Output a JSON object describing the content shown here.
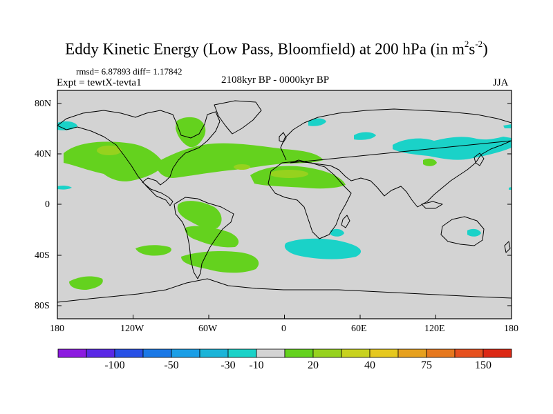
{
  "title": {
    "main": "Eddy Kinetic Energy (Low Pass, Bloomfield) at 200 hPa (in m",
    "sup1": "2",
    "mid": "s",
    "sup2": "-2",
    "close": ")"
  },
  "stats": "rmsd= 6.87893 diff= 1.17842",
  "experiment": "Expt = tewtX-tevta1",
  "period": "2108kyr BP - 0000kyr BP",
  "season": "JJA",
  "lat_labels": [
    "80N",
    "40N",
    "0",
    "40S",
    "80S"
  ],
  "lon_labels": [
    "180",
    "120W",
    "60W",
    "0",
    "60E",
    "120E",
    "180"
  ],
  "colorbar": {
    "colors": [
      "#8c1ae0",
      "#5a28e6",
      "#2850e6",
      "#1a78e6",
      "#1a9ee6",
      "#1ab4d8",
      "#1ad2c8",
      "#d3d3d3",
      "#64d21e",
      "#96d21e",
      "#c8d21e",
      "#e6c81e",
      "#e6a01e",
      "#e6781e",
      "#e6501e",
      "#dc2814"
    ],
    "labels": [
      "-100",
      "-50",
      "-30",
      "-10",
      "20",
      "40",
      "75",
      "150"
    ]
  }
}
